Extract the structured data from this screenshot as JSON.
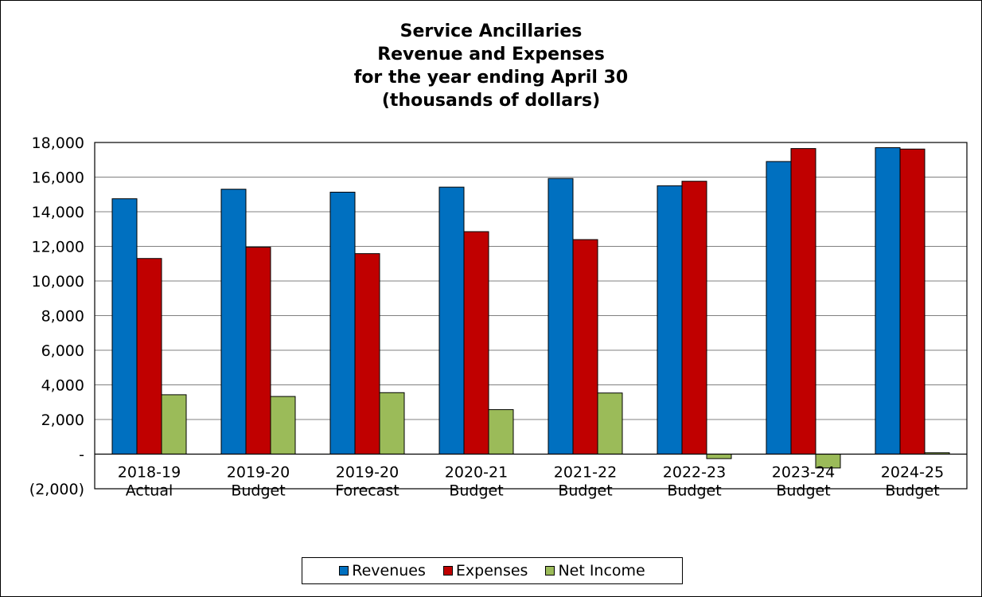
{
  "chart_data": {
    "type": "bar",
    "title_lines": [
      "Service Ancillaries",
      "Revenue and Expenses",
      "for the year ending April 30",
      "(thousands of dollars)"
    ],
    "categories": [
      [
        "2018-19",
        "Actual"
      ],
      [
        "2019-20",
        "Budget"
      ],
      [
        "2019-20",
        "Forecast"
      ],
      [
        "2020-21",
        "Budget"
      ],
      [
        "2021-22",
        "Budget"
      ],
      [
        "2022-23",
        "Budget"
      ],
      [
        "2023-24",
        "Budget"
      ],
      [
        "2024-25",
        "Budget"
      ]
    ],
    "series": [
      {
        "name": "Revenues",
        "color": "#0070C0",
        "values": [
          14750,
          15300,
          15130,
          15420,
          15920,
          15500,
          16900,
          17700
        ]
      },
      {
        "name": "Expenses",
        "color": "#C00000",
        "values": [
          11300,
          11950,
          11580,
          12850,
          12390,
          15760,
          17650,
          17620
        ]
      },
      {
        "name": "Net Income",
        "color": "#9BBB59",
        "values": [
          3430,
          3330,
          3550,
          2570,
          3530,
          -260,
          -800,
          80
        ]
      }
    ],
    "ylim": [
      -2000,
      18000
    ],
    "yticks": [
      -2000,
      0,
      2000,
      4000,
      6000,
      8000,
      10000,
      12000,
      14000,
      16000,
      18000
    ],
    "ytick_labels": [
      "(2,000)",
      "-",
      "2,000",
      "4,000",
      "6,000",
      "8,000",
      "10,000",
      "12,000",
      "14,000",
      "16,000",
      "18,000"
    ],
    "grid": true,
    "legend_position": "bottom"
  }
}
